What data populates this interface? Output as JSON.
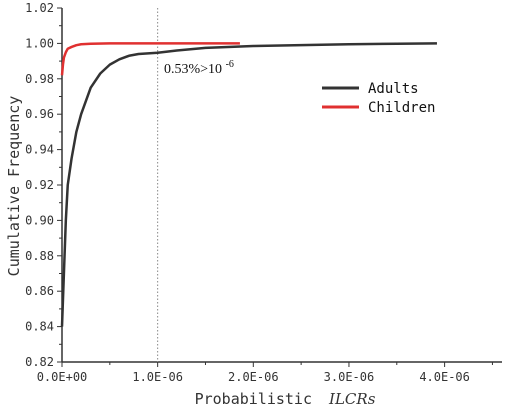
{
  "chart_data": {
    "type": "line",
    "title": "",
    "xlabel": "Probabilistic",
    "xlabel_italic": "ILCRs",
    "ylabel": "Cumulative Frequency",
    "xlim": [
      0,
      4.6e-06
    ],
    "ylim": [
      0.82,
      1.02
    ],
    "x_ticks": [
      0,
      1e-06,
      2e-06,
      3e-06,
      4e-06
    ],
    "x_tick_labels": [
      "0.0E+00",
      "1.0E-06",
      "2.0E-06",
      "3.0E-06",
      "4.0E-06"
    ],
    "y_ticks": [
      0.82,
      0.84,
      0.86,
      0.88,
      0.9,
      0.92,
      0.94,
      0.96,
      0.98,
      1.0,
      1.02
    ],
    "y_tick_labels": [
      "0.82",
      "0.84",
      "0.86",
      "0.88",
      "0.90",
      "0.92",
      "0.94",
      "0.96",
      "0.98",
      "1.00",
      "1.02"
    ],
    "grid": false,
    "legend_position": "right",
    "reference_line_x": 1e-06,
    "annotation_text": "0.53%>10",
    "annotation_sup": "-6",
    "series": [
      {
        "name": "Adults",
        "color": "#333333",
        "x": [
          0,
          2e-08,
          4e-08,
          6e-08,
          1e-07,
          1.5e-07,
          2e-07,
          3e-07,
          4e-07,
          5e-07,
          6e-07,
          7e-07,
          8e-07,
          1e-06,
          1.2e-06,
          1.5e-06,
          2e-06,
          2.5e-06,
          3e-06,
          3.5e-06,
          3.92e-06
        ],
        "values": [
          0.84,
          0.87,
          0.9,
          0.92,
          0.935,
          0.95,
          0.96,
          0.975,
          0.983,
          0.988,
          0.991,
          0.993,
          0.994,
          0.9947,
          0.996,
          0.9975,
          0.9985,
          0.999,
          0.9995,
          0.9998,
          1.0
        ]
      },
      {
        "name": "Children",
        "color": "#e03030",
        "x": [
          0,
          1e-08,
          2e-08,
          4e-08,
          6e-08,
          1e-07,
          1.5e-07,
          2e-07,
          3e-07,
          5e-07,
          8e-07,
          1.2e-06,
          1.6e-06,
          1.86e-06
        ],
        "values": [
          0.982,
          0.988,
          0.992,
          0.995,
          0.997,
          0.998,
          0.999,
          0.9995,
          0.9998,
          1.0,
          1.0,
          1.0,
          1.0,
          1.0
        ]
      }
    ]
  }
}
